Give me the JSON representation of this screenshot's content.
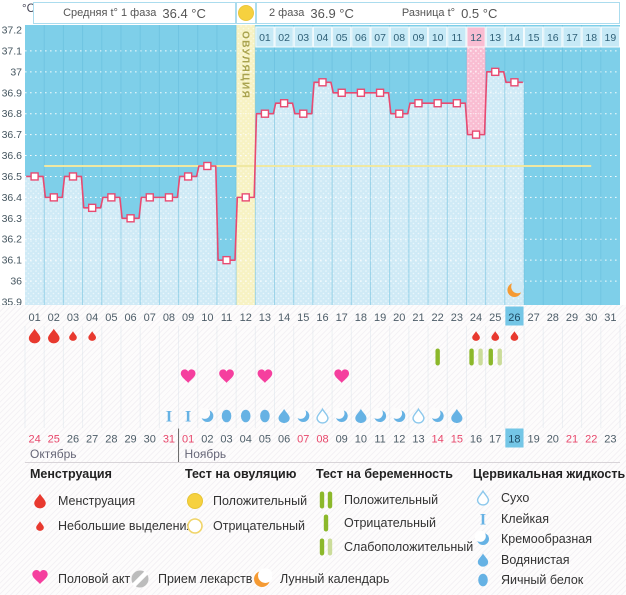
{
  "header": {
    "unit": "°C",
    "phase1_label": "Средняя t° 1 фаза",
    "phase1_value": "36.4 °C",
    "phase2_label": "2 фаза",
    "phase2_value": "36.9 °C",
    "diff_label": "Разница t°",
    "diff_value": "0.5 °C"
  },
  "chart_data": {
    "type": "line",
    "title": "",
    "ylabel": "°C",
    "xlabel": "",
    "ylim": [
      35.9,
      37.2
    ],
    "ytick_labels": [
      "37.2",
      "37.1",
      "37",
      "36.9",
      "36.8",
      "36.7",
      "36.6",
      "36.5",
      "36.4",
      "36.3",
      "36.2",
      "36.1",
      "36",
      "35.9"
    ],
    "cycle_days": [
      "01",
      "02",
      "03",
      "04",
      "05",
      "06",
      "07",
      "08",
      "09",
      "10",
      "11",
      "12",
      "13",
      "14",
      "15",
      "16",
      "17",
      "18",
      "19",
      "20",
      "21",
      "22",
      "23",
      "24",
      "25",
      "26",
      "27",
      "28",
      "29",
      "30",
      "31"
    ],
    "temps_by_day": [
      36.5,
      36.4,
      36.5,
      36.35,
      36.4,
      36.3,
      36.4,
      36.4,
      36.5,
      36.55,
      36.1,
      36.4,
      36.8,
      36.85,
      36.8,
      36.95,
      36.9,
      36.9,
      36.9,
      36.8,
      36.85,
      36.85,
      36.85,
      36.7,
      37.0,
      36.95,
      null,
      null,
      null,
      null,
      null
    ],
    "coverline_temp": 36.55,
    "coverline_day_span": [
      2,
      30
    ],
    "ovulation_day": 12,
    "ovulation_column_label": "ОВУЛЯЦИЯ",
    "dpo_start_day": 13,
    "dpo_labels": [
      "01",
      "02",
      "03",
      "04",
      "05",
      "06",
      "07",
      "08",
      "09",
      "10",
      "11",
      "12",
      "13",
      "14",
      "15",
      "16",
      "17",
      "18",
      "19"
    ],
    "dpo_highlight_label": "12",
    "highlighted_day": 24,
    "current_day": 26,
    "moon_day": 26,
    "grid": true
  },
  "tracking": {
    "menstruation": [
      {
        "day": 1,
        "intensity": "normal"
      },
      {
        "day": 2,
        "intensity": "normal"
      },
      {
        "day": 3,
        "intensity": "light"
      },
      {
        "day": 4,
        "intensity": "light"
      },
      {
        "day": 24,
        "intensity": "light"
      },
      {
        "day": 25,
        "intensity": "light"
      },
      {
        "day": 26,
        "intensity": "light"
      }
    ],
    "pregnancy_tests": [
      {
        "day": 22,
        "result": "negative"
      },
      {
        "day": 24,
        "result": "weak_positive"
      },
      {
        "day": 25,
        "result": "weak_positive"
      }
    ],
    "intercourse_days": [
      9,
      11,
      13,
      17
    ],
    "cervical_fluid": [
      {
        "day": 8,
        "type": "sticky"
      },
      {
        "day": 9,
        "type": "sticky"
      },
      {
        "day": 10,
        "type": "creamy"
      },
      {
        "day": 11,
        "type": "eggwhite"
      },
      {
        "day": 12,
        "type": "eggwhite"
      },
      {
        "day": 13,
        "type": "eggwhite"
      },
      {
        "day": 14,
        "type": "watery"
      },
      {
        "day": 15,
        "type": "creamy"
      },
      {
        "day": 16,
        "type": "dry"
      },
      {
        "day": 17,
        "type": "creamy"
      },
      {
        "day": 18,
        "type": "watery"
      },
      {
        "day": 19,
        "type": "creamy"
      },
      {
        "day": 20,
        "type": "creamy"
      },
      {
        "day": 21,
        "type": "dry"
      },
      {
        "day": 22,
        "type": "creamy"
      },
      {
        "day": 23,
        "type": "watery"
      }
    ]
  },
  "calendar": {
    "dates": [
      "24",
      "25",
      "26",
      "27",
      "28",
      "29",
      "30",
      "31",
      "01",
      "02",
      "03",
      "04",
      "05",
      "06",
      "07",
      "08",
      "09",
      "10",
      "11",
      "12",
      "13",
      "14",
      "15",
      "16",
      "17",
      "18",
      "19",
      "20",
      "21",
      "22",
      "23"
    ],
    "weekend_indices": [
      0,
      1,
      7,
      8,
      14,
      15,
      21,
      22,
      28,
      29
    ],
    "current_index": 25,
    "months": [
      {
        "name": "Октябрь",
        "start_index": 0
      },
      {
        "name": "Ноябрь",
        "start_index": 8
      }
    ]
  },
  "legend": {
    "sections": [
      {
        "title": "Менструация",
        "items": [
          {
            "icon": "drop-big",
            "label": "Менструация"
          },
          {
            "icon": "drop-small",
            "label": "Небольшие выделения"
          }
        ]
      },
      {
        "title": "Тест на овуляцию",
        "items": [
          {
            "icon": "circle-filled",
            "label": "Положительный"
          },
          {
            "icon": "circle-outline",
            "label": "Отрицательный"
          }
        ]
      },
      {
        "title": "Тест на беременность",
        "items": [
          {
            "icon": "bars-two",
            "label": "Положительный"
          },
          {
            "icon": "bar-one",
            "label": "Отрицательный"
          },
          {
            "icon": "bars-weak",
            "label": "Слабоположительный"
          }
        ]
      },
      {
        "title": "Цервикальная жидкость",
        "items": [
          {
            "icon": "fluid-dry",
            "label": "Сухо"
          },
          {
            "icon": "fluid-sticky",
            "label": "Клейкая"
          },
          {
            "icon": "fluid-creamy",
            "label": "Кремообразная"
          },
          {
            "icon": "fluid-watery",
            "label": "Водянистая"
          },
          {
            "icon": "fluid-eggwhite",
            "label": "Яичный белок"
          }
        ]
      }
    ],
    "footer_items": [
      {
        "icon": "heart",
        "label": "Половой акт"
      },
      {
        "icon": "pill",
        "label": "Прием лекарств"
      },
      {
        "icon": "moon",
        "label": "Лунный календарь"
      }
    ]
  },
  "colors": {
    "accent_line": "#e84a71",
    "chart_bg": "#7ecfe9",
    "fill_light": "#cfeaf6",
    "dpo_row_bg": "#c6e9f6",
    "ovulation_col": "#f7f2c3",
    "highlight_pink": "#f9bdd2",
    "current_day_bg": "#74c6e6",
    "coverline": "#efe8a2",
    "menses_red": "#e8392f",
    "heart_pink": "#f53f9e",
    "fluid_blue": "#66b2e4",
    "test_green_dark": "#8cb82b",
    "test_green_light": "#cbdc9a",
    "ovu_yellow": "#f6d13f",
    "moon_orange": "#f59a33",
    "weekend_red": "#e8476b",
    "pill_gray": "#bcbcbc",
    "text_dark": "#4d5d68"
  }
}
